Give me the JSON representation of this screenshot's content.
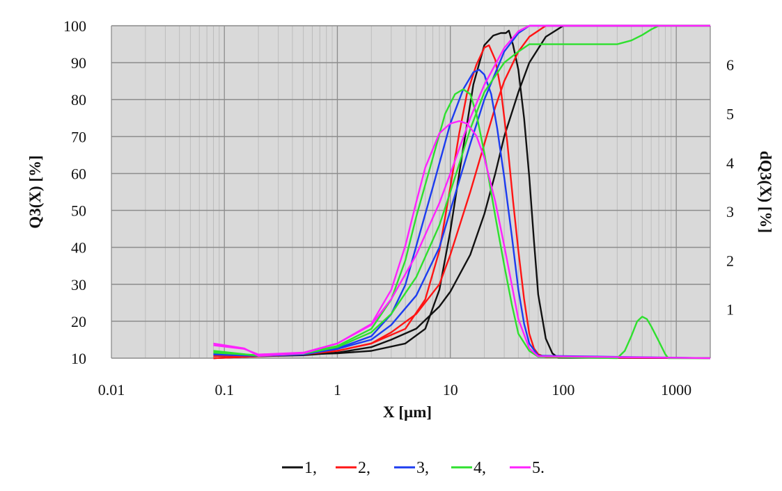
{
  "chart_data": {
    "type": "line",
    "xlabel": "X [µm]",
    "ylabel_left": "Q3(X) [%]",
    "ylabel_right": "dQ3(X) [%]",
    "x_scale": "log",
    "xlim": [
      0.01,
      2000
    ],
    "ylim_left": [
      10,
      100
    ],
    "ylim_right": [
      0,
      6.8
    ],
    "x_tick_labels": [
      "0.01",
      "0.1",
      "1",
      "10",
      "100",
      "1000"
    ],
    "x_tick_values": [
      0.01,
      0.1,
      1,
      10,
      100,
      1000
    ],
    "y_left_ticks": [
      10,
      20,
      30,
      40,
      50,
      60,
      70,
      80,
      90,
      100
    ],
    "y_right_ticks": [
      1,
      2,
      3,
      4,
      5,
      6
    ],
    "grid": true,
    "background": "#d9d9d9",
    "legend_position": "bottom-center",
    "legend_labels": [
      "1,",
      "2,",
      "3,",
      "4,",
      "5."
    ],
    "series": [
      {
        "name": "1,",
        "color": "#111111",
        "cumulative_Q3": {
          "x": [
            0.08,
            0.2,
            0.5,
            1,
            2,
            3,
            5,
            8,
            10,
            15,
            20,
            25,
            30,
            40,
            50,
            70,
            100,
            2000
          ],
          "y": [
            10,
            10.5,
            10.8,
            11.5,
            13,
            15,
            18,
            24,
            28,
            38,
            49,
            60,
            70,
            82,
            90,
            97,
            100,
            100
          ]
        },
        "density_dQ3": {
          "x": [
            0.08,
            0.2,
            0.5,
            1,
            2,
            4,
            6,
            8,
            10,
            13,
            16,
            20,
            24,
            28,
            31,
            33,
            36,
            40,
            45,
            50,
            55,
            60,
            70,
            80,
            90,
            2000
          ],
          "y": [
            0.05,
            0.05,
            0.08,
            0.1,
            0.15,
            0.3,
            0.6,
            1.4,
            2.6,
            4.3,
            5.6,
            6.4,
            6.6,
            6.65,
            6.65,
            6.7,
            6.4,
            5.9,
            4.9,
            3.7,
            2.4,
            1.3,
            0.4,
            0.1,
            0.01,
            0
          ]
        }
      },
      {
        "name": "2,",
        "color": "#ff1414",
        "cumulative_Q3": {
          "x": [
            0.08,
            0.2,
            0.5,
            1,
            2,
            3,
            5,
            8,
            10,
            15,
            20,
            25,
            30,
            40,
            50,
            70,
            2000
          ],
          "y": [
            10,
            10.5,
            11,
            12,
            14,
            17,
            22,
            30,
            38,
            55,
            68,
            78,
            85,
            93,
            97,
            100,
            100
          ]
        },
        "density_dQ3": {
          "x": [
            0.08,
            0.2,
            0.5,
            1,
            2,
            4,
            6,
            8,
            10,
            12,
            14,
            17,
            20,
            22,
            25,
            28,
            32,
            36,
            40,
            45,
            50,
            55,
            60,
            70,
            2000
          ],
          "y": [
            0.05,
            0.05,
            0.1,
            0.15,
            0.3,
            0.6,
            1.2,
            2.2,
            3.5,
            4.6,
            5.4,
            6.0,
            6.35,
            6.4,
            6.1,
            5.5,
            4.4,
            3.2,
            2.2,
            1.2,
            0.5,
            0.2,
            0.08,
            0.02,
            0
          ]
        }
      },
      {
        "name": "3,",
        "color": "#1c3cf0",
        "cumulative_Q3": {
          "x": [
            0.08,
            0.2,
            0.5,
            1,
            2,
            3,
            5,
            8,
            10,
            15,
            20,
            30,
            40,
            50,
            2000
          ],
          "y": [
            11,
            10.6,
            11,
            12.5,
            15,
            19,
            27,
            40,
            50,
            68,
            80,
            93,
            98,
            100,
            100
          ]
        },
        "density_dQ3": {
          "x": [
            0.08,
            0.2,
            0.5,
            1,
            2,
            3,
            4,
            5,
            7,
            10,
            13,
            16,
            18,
            20,
            23,
            26,
            30,
            35,
            40,
            45,
            50,
            60,
            2000
          ],
          "y": [
            0.1,
            0.05,
            0.1,
            0.2,
            0.45,
            0.9,
            1.5,
            2.3,
            3.5,
            4.8,
            5.5,
            5.85,
            5.9,
            5.8,
            5.4,
            4.7,
            3.7,
            2.5,
            1.4,
            0.7,
            0.3,
            0.05,
            0
          ]
        }
      },
      {
        "name": "4,",
        "color": "#2ee02e",
        "cumulative_Q3": {
          "x": [
            0.08,
            0.2,
            0.5,
            1,
            2,
            3,
            5,
            8,
            10,
            15,
            20,
            30,
            40,
            50,
            100,
            200,
            300,
            400,
            500,
            600,
            700,
            2000
          ],
          "y": [
            11.5,
            10.8,
            11.2,
            13,
            17,
            22,
            32,
            46,
            55,
            72,
            82,
            90,
            93,
            95,
            95,
            95,
            95,
            96,
            97.5,
            99,
            100,
            100
          ]
        },
        "density_dQ3": {
          "x": [
            0.08,
            0.2,
            0.5,
            1,
            2,
            3,
            4,
            5,
            7,
            9,
            11,
            13,
            15,
            17,
            20,
            25,
            30,
            35,
            40,
            50,
            60,
            300,
            350,
            400,
            450,
            500,
            550,
            600,
            700,
            800,
            850,
            2000
          ],
          "y": [
            0.15,
            0.05,
            0.1,
            0.25,
            0.6,
            1.2,
            2.0,
            2.9,
            4.1,
            5.0,
            5.4,
            5.5,
            5.4,
            5.0,
            4.2,
            2.9,
            1.9,
            1.1,
            0.5,
            0.15,
            0.03,
            0,
            0.15,
            0.45,
            0.75,
            0.85,
            0.8,
            0.65,
            0.35,
            0.08,
            0,
            0
          ]
        }
      },
      {
        "name": "5.",
        "color": "#ff22ff",
        "cumulative_Q3": {
          "x": [
            0.08,
            0.15,
            0.2,
            0.5,
            1,
            2,
            3,
            5,
            8,
            10,
            15,
            20,
            30,
            40,
            50,
            2000
          ],
          "y": [
            13.5,
            12.5,
            11,
            11.5,
            14,
            19,
            26,
            38,
            52,
            60,
            75,
            84,
            94,
            98.5,
            100,
            100
          ]
        },
        "density_dQ3": {
          "x": [
            0.08,
            0.15,
            0.2,
            0.5,
            1,
            2,
            3,
            4,
            5,
            6,
            8,
            10,
            12,
            14,
            17,
            20,
            25,
            30,
            35,
            40,
            50,
            60,
            2000
          ],
          "y": [
            0.3,
            0.2,
            0.05,
            0.1,
            0.3,
            0.7,
            1.4,
            2.3,
            3.2,
            3.9,
            4.6,
            4.8,
            4.85,
            4.8,
            4.55,
            4.1,
            3.2,
            2.3,
            1.5,
            0.8,
            0.2,
            0.04,
            0
          ]
        }
      }
    ]
  }
}
